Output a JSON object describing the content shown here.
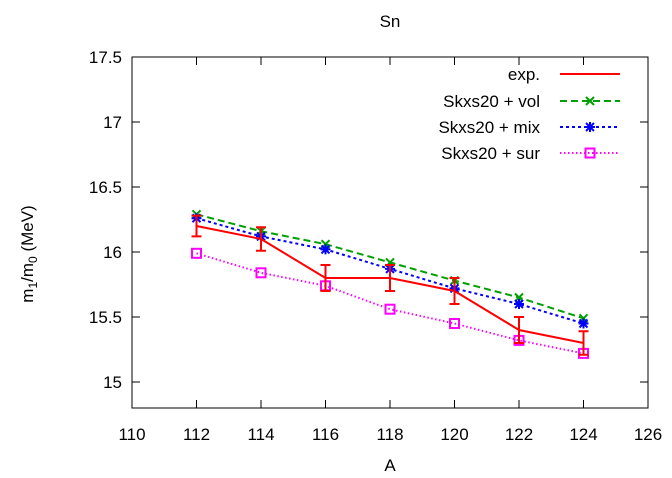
{
  "chart_data": {
    "type": "line",
    "title": "Sn",
    "xlabel": "A",
    "ylabel": "m1/m0 (MeV)",
    "ylabel_parts": {
      "m": "m",
      "sub1": "1",
      "slash": "/m",
      "sub0": "0",
      "unit": " (MeV)"
    },
    "xlim": [
      110,
      126
    ],
    "ylim": [
      14.8,
      17.5
    ],
    "xticks": [
      110,
      112,
      114,
      116,
      118,
      120,
      122,
      124,
      126
    ],
    "xtick_labels": [
      "110",
      "112",
      "114",
      "116",
      "118",
      "120",
      "122",
      "124",
      "126"
    ],
    "yticks": [
      15,
      15.5,
      16,
      16.5,
      17,
      17.5
    ],
    "ytick_labels": [
      "15",
      "15.5",
      "16",
      "16.5",
      "17",
      "17.5"
    ],
    "grid": false,
    "legend_position": "top-right",
    "x": [
      112,
      114,
      116,
      118,
      120,
      122,
      124
    ],
    "series": [
      {
        "name": "exp.",
        "values": [
          16.2,
          16.1,
          15.8,
          15.8,
          15.7,
          15.4,
          15.3
        ],
        "errors": [
          0.08,
          0.09,
          0.1,
          0.1,
          0.1,
          0.1,
          0.09
        ],
        "color": "#ff0000",
        "dash": "",
        "marker": "errorbar"
      },
      {
        "name": "Skxs20 + vol",
        "values": [
          16.29,
          16.16,
          16.06,
          15.92,
          15.78,
          15.65,
          15.49
        ],
        "color": "#00a000",
        "dash": "7,4",
        "marker": "x"
      },
      {
        "name": "Skxs20 + mix",
        "values": [
          16.26,
          16.12,
          16.02,
          15.87,
          15.72,
          15.6,
          15.45
        ],
        "color": "#0000ff",
        "dash": "3,3",
        "marker": "star"
      },
      {
        "name": "Skxs20 + sur",
        "values": [
          15.99,
          15.84,
          15.74,
          15.56,
          15.45,
          15.32,
          15.22
        ],
        "color": "#ff00ff",
        "dash": "1.5,2.5",
        "marker": "square"
      }
    ]
  }
}
